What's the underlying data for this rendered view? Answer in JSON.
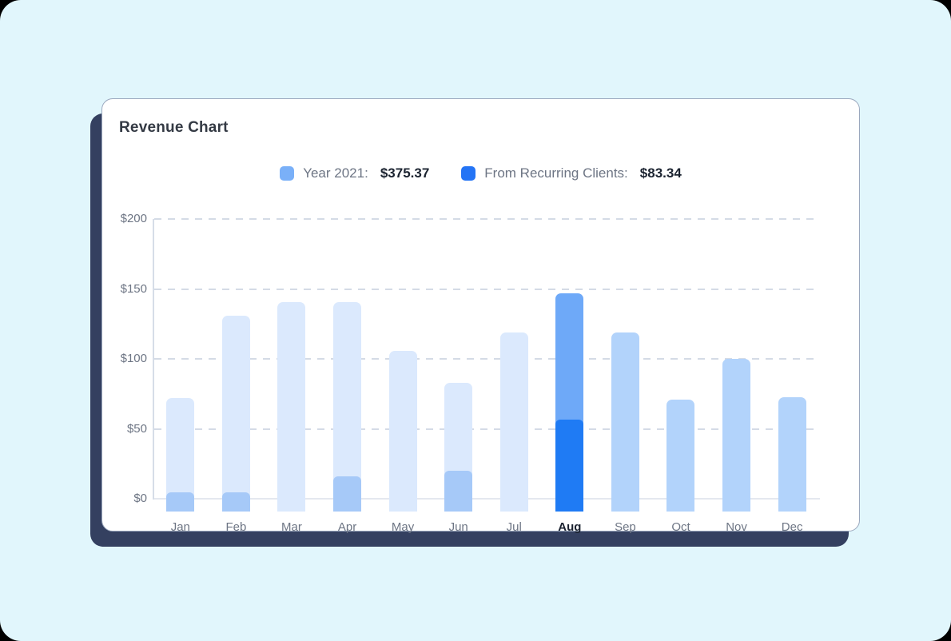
{
  "page": {
    "background_color": "#e1f6fc",
    "card_shadow_color": "#344060"
  },
  "card": {
    "title": "Revenue Chart"
  },
  "legend": {
    "items": [
      {
        "label": "Year 2021:",
        "value": "$375.37",
        "color": "#7ab0f8"
      },
      {
        "label": "From Recurring Clients:",
        "value": "$83.34",
        "color": "#2474f5"
      }
    ]
  },
  "chart_data": {
    "type": "bar",
    "title": "Revenue Chart",
    "stacked": true,
    "categories": [
      "Jan",
      "Feb",
      "Mar",
      "Apr",
      "May",
      "Jun",
      "Jul",
      "Aug",
      "Sep",
      "Oct",
      "Nov",
      "Dec"
    ],
    "series": [
      {
        "name": "Year 2021",
        "values": [
          81,
          140,
          150,
          150,
          115,
          92,
          128,
          156,
          128,
          80,
          109,
          82
        ]
      },
      {
        "name": "From Recurring Clients",
        "values": [
          14,
          14,
          0,
          25,
          0,
          29,
          0,
          66,
          0,
          0,
          0,
          0
        ]
      }
    ],
    "shades": [
      "past",
      "past",
      "past",
      "past",
      "past",
      "past",
      "past",
      "current",
      "future",
      "future",
      "future",
      "future"
    ],
    "highlighted_month": "Aug",
    "ylabel": "",
    "xlabel": "",
    "ylim": [
      0,
      200
    ],
    "y_ticks": [
      "$200",
      "$150",
      "$100",
      "$50",
      "$0"
    ],
    "grid": "horizontal-dashed",
    "legend_position": "top-center",
    "colors": {
      "past": {
        "total": "#dbe9fd",
        "recurring": "#a6c9f8"
      },
      "current": {
        "total": "#6ea9f8",
        "recurring": "#1f7bf4"
      },
      "future": {
        "total": "#b2d3fb",
        "recurring": "#a6c9f8"
      }
    }
  }
}
